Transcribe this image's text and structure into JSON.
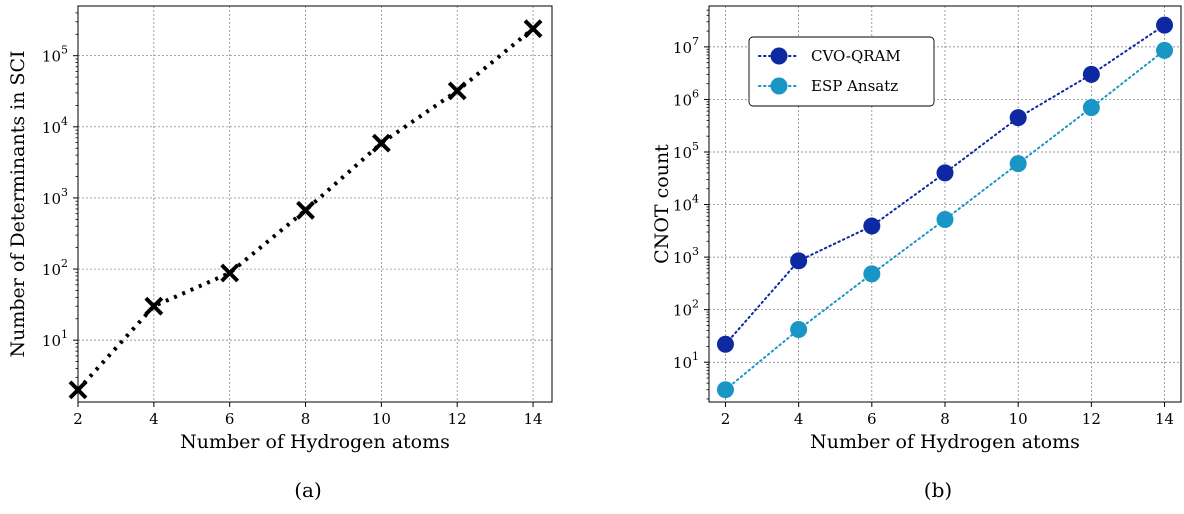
{
  "chart_data": [
    {
      "type": "line",
      "caption": "(a)",
      "xlabel": "Number of Hydrogen atoms",
      "ylabel": "Number of Determinants in SCI",
      "y_scale": "log",
      "xlim": [
        2,
        14.5
      ],
      "ylim": [
        1.35,
        500000
      ],
      "x_ticks": [
        2,
        4,
        6,
        8,
        10,
        12,
        14
      ],
      "y_ticks": [
        {
          "value": 10,
          "base": "10",
          "exp": "1"
        },
        {
          "value": 100,
          "base": "10",
          "exp": "2"
        },
        {
          "value": 1000,
          "base": "10",
          "exp": "3"
        },
        {
          "value": 10000,
          "base": "10",
          "exp": "4"
        },
        {
          "value": 100000,
          "base": "10",
          "exp": "5"
        }
      ],
      "grid": true,
      "series": [
        {
          "color": "#000000",
          "marker": "x",
          "line_style": "dotted",
          "x": [
            2,
            4,
            6,
            8,
            10,
            12,
            14
          ],
          "y": [
            2,
            30,
            88,
            670,
            5900,
            32000,
            240000
          ]
        }
      ]
    },
    {
      "type": "line",
      "caption": "(b)",
      "xlabel": "Number of Hydrogen atoms",
      "ylabel": "CNOT count",
      "y_scale": "log",
      "xlim": [
        1.55,
        14.45
      ],
      "ylim": [
        1.75,
        60000000
      ],
      "x_ticks": [
        2,
        4,
        6,
        8,
        10,
        12,
        14
      ],
      "y_ticks": [
        {
          "value": 10,
          "base": "10",
          "exp": "1"
        },
        {
          "value": 100,
          "base": "10",
          "exp": "2"
        },
        {
          "value": 1000,
          "base": "10",
          "exp": "3"
        },
        {
          "value": 10000,
          "base": "10",
          "exp": "4"
        },
        {
          "value": 100000,
          "base": "10",
          "exp": "5"
        },
        {
          "value": 1000000,
          "base": "10",
          "exp": "6"
        },
        {
          "value": 10000000,
          "base": "10",
          "exp": "7"
        }
      ],
      "grid": true,
      "legend": "top-left",
      "series": [
        {
          "name": "CVO-QRAM",
          "color": "#0d28a0",
          "marker": "circle",
          "line_style": "dotted",
          "x": [
            2,
            4,
            6,
            8,
            10,
            12,
            14
          ],
          "y": [
            22,
            850,
            3900,
            40000,
            450000,
            3000000,
            26000000
          ]
        },
        {
          "name": "ESP Ansatz",
          "color": "#1a96c6",
          "marker": "circle",
          "line_style": "dotted",
          "x": [
            2,
            4,
            6,
            8,
            10,
            12,
            14
          ],
          "y": [
            3,
            42,
            480,
            5200,
            60000,
            700000,
            8600000
          ]
        }
      ]
    }
  ]
}
